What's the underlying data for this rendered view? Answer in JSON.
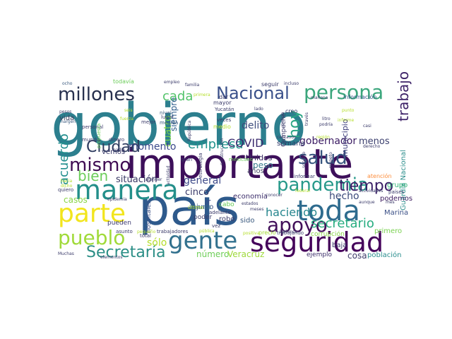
{
  "words": [
    {
      "text": "gobierno",
      "color": "#2c7f8e"
    },
    {
      "text": "importante",
      "color": "#3d0f5a"
    },
    {
      "text": "país",
      "color": "#2e5a8c"
    },
    {
      "text": "gente",
      "color": "#32718e"
    },
    {
      "text": "seguridad",
      "color": "#44015a"
    },
    {
      "text": "manera",
      "color": "#248f8a"
    },
    {
      "text": "toda",
      "color": "#2e6b8e"
    },
    {
      "text": "pandemia",
      "color": "#27998a"
    },
    {
      "text": "tiempo",
      "color": "#3a1f66"
    },
    {
      "text": "persona",
      "color": "#3ba67c"
    },
    {
      "text": "millones",
      "color": "#27304e"
    },
    {
      "text": "parte",
      "color": "#f2e51d"
    },
    {
      "text": "pueblo",
      "color": "#a0da39"
    },
    {
      "text": "mismo",
      "color": "#3e0b52"
    },
    {
      "text": "apoyo",
      "color": "#42105a"
    },
    {
      "text": "salud",
      "color": "#37557e"
    },
    {
      "text": "Nacional",
      "color": "#3a508a"
    },
    {
      "text": "Ciudad",
      "color": "#2c3a5e"
    },
    {
      "text": "Secretaría",
      "color": "#2b8e86"
    },
    {
      "text": "hoy",
      "color": "#29a584"
    },
    {
      "text": "cada",
      "color": "#52c36a"
    },
    {
      "text": "trabajo",
      "color": "#3d2268"
    },
    {
      "text": "bien",
      "color": "#6ccd5a"
    },
    {
      "text": "acuerdo",
      "color": "#218e8d"
    },
    {
      "text": "empresa",
      "color": "#20928c"
    },
    {
      "text": "secretario",
      "color": "#27ad80"
    },
    {
      "text": "haciendo",
      "color": "#26868e"
    },
    {
      "text": "COVID",
      "color": "#3b2b6e"
    },
    {
      "text": "cuatro",
      "color": "#7cd250"
    },
    {
      "text": "momento",
      "color": "#3a4a8a"
    },
    {
      "text": "situación",
      "color": "#3a3a66"
    },
    {
      "text": "sólo",
      "color": "#b5de2b"
    },
    {
      "text": "general",
      "color": "#3e4a89"
    },
    {
      "text": "cinco",
      "color": "#3a3a6a"
    },
    {
      "text": "hecho",
      "color": "#3b4a7a"
    },
    {
      "text": "gobernador",
      "color": "#3a1a62"
    },
    {
      "text": "delito",
      "color": "#3b4b7c"
    },
    {
      "text": "menos",
      "color": "#3b3f6e"
    },
    {
      "text": "siempre",
      "color": "#2a5a8a"
    },
    {
      "text": "peso",
      "color": "#3b7e8e"
    },
    {
      "text": "Veracruz",
      "color": "#9ed93a"
    },
    {
      "text": "número",
      "color": "#6ece58"
    },
    {
      "text": "cosa",
      "color": "#3e3b6a"
    },
    {
      "text": "Guardia Nacional",
      "color": "#2c8e8c"
    },
    {
      "text": "municipio",
      "color": "#3b3c7a"
    },
    {
      "text": "casos",
      "color": "#8ad547"
    },
    {
      "text": "junio",
      "color": "#3b4f7f"
    },
    {
      "text": "economía",
      "color": "#3b2d6a"
    },
    {
      "text": "Marina",
      "color": "#3a4f86"
    },
    {
      "text": "podemos",
      "color": "#3b1a5e"
    },
    {
      "text": "grupo",
      "color": "#35b779"
    },
    {
      "text": "pueden",
      "color": "#3d3a72"
    },
    {
      "text": "vemos",
      "color": "#3a3a6a"
    },
    {
      "text": "semana",
      "color": "#2f3a6a"
    },
    {
      "text": "Unidos",
      "color": "#3a2a62"
    },
    {
      "text": "años",
      "color": "#4a4a6a"
    },
    {
      "text": "vida",
      "color": "#3e3e5e"
    },
    {
      "text": "cabo",
      "color": "#6ccd5a"
    },
    {
      "text": "robo",
      "color": "#3a3a6a"
    },
    {
      "text": "sido",
      "color": "#3b5a7f"
    },
    {
      "text": "baja",
      "color": "#3b3b6a"
    },
    {
      "text": "ejemplo",
      "color": "#3b2d6a"
    },
    {
      "text": "población",
      "color": "#2a8e8e"
    },
    {
      "text": "primero",
      "color": "#7ad151"
    },
    {
      "text": "corrupción",
      "color": "#8ad547"
    },
    {
      "text": "trabajando",
      "color": "#3b3b6a"
    },
    {
      "text": "precio",
      "color": "#a5db36"
    },
    {
      "text": "hospitales",
      "color": "#3b4f86"
    },
    {
      "text": "poder",
      "color": "#3b3b6a"
    },
    {
      "text": "cuenta",
      "color": "#2f6b8e"
    },
    {
      "text": "ir",
      "color": "#3b4b8a"
    },
    {
      "text": "mayor",
      "color": "#3b3b6a"
    },
    {
      "text": "dar",
      "color": "#3b3b6a"
    },
    {
      "text": "seguir",
      "color": "#3b3b6a"
    },
    {
      "text": "información",
      "color": "#3a5a8a"
    },
    {
      "text": "creo",
      "color": "#3b3b6a"
    },
    {
      "text": "medio",
      "color": "#b5de2b"
    },
    {
      "text": "Campeche",
      "color": "#3b3b6a"
    },
    {
      "text": "Yucatán",
      "color": "#3b3b6a"
    },
    {
      "text": "mexicano",
      "color": "#6ccd5a"
    },
    {
      "text": "informar",
      "color": "#3b3b6a"
    },
    {
      "text": "atención",
      "color": "#fd8d3c"
    },
    {
      "text": "todavía",
      "color": "#6ccd5a"
    },
    {
      "text": "personal",
      "color": "#3b3b6a"
    },
    {
      "text": "mejor",
      "color": "#3b3b6a"
    },
    {
      "text": "lugar",
      "color": "#3b3b6a"
    },
    {
      "text": "mundo",
      "color": "#3b3b6a"
    },
    {
      "text": "dinero",
      "color": "#3b3b6a"
    },
    {
      "text": "propuesta",
      "color": "#6ccd5a"
    },
    {
      "text": "nivel",
      "color": "#3b5a7f"
    },
    {
      "text": "medida",
      "color": "#3b5a7f"
    },
    {
      "text": "estrategia",
      "color": "#3b3b6a"
    },
    {
      "text": "gran",
      "color": "#3b3b6a"
    },
    {
      "text": "vez",
      "color": "#3b3b6a"
    },
    {
      "text": "veces",
      "color": "#3b3b6a"
    },
    {
      "text": "República",
      "color": "#3b3b6a"
    },
    {
      "text": "actividad",
      "color": "#3b3b6a"
    },
    {
      "text": "último",
      "color": "#b5de2b"
    },
    {
      "text": "estados",
      "color": "#3b3b6a"
    },
    {
      "text": "adelante",
      "color": "#3b3b6a"
    },
    {
      "text": "construcción",
      "color": "#3b3b6a"
    },
    {
      "text": "positiva",
      "color": "#b5de2b"
    },
    {
      "text": "total",
      "color": "#3b3b6a"
    },
    {
      "text": "asunto",
      "color": "#3b3b6a"
    },
    {
      "text": "pequeño",
      "color": "#b5de2b"
    },
    {
      "text": "trabajadores",
      "color": "#3b3b6a"
    },
    {
      "text": "pública",
      "color": "#b5de2b"
    },
    {
      "text": "Muchas",
      "color": "#3b3b6a"
    },
    {
      "text": "elementos",
      "color": "#3b3b6a"
    },
    {
      "text": "quiero",
      "color": "#3b3b6a"
    },
    {
      "text": "hacia",
      "color": "#b5de2b"
    },
    {
      "text": "dicho",
      "color": "#b5de2b"
    },
    {
      "text": "epidemia",
      "color": "#3b3b6a"
    },
    {
      "text": "conocer",
      "color": "#3b3b6a"
    },
    {
      "text": "federal",
      "color": "#b5de2b"
    },
    {
      "text": "actividades",
      "color": "#3b3b6a"
    },
    {
      "text": "países",
      "color": "#3b3b6a"
    },
    {
      "text": "aunque",
      "color": "#3b3b6a"
    },
    {
      "text": "mes",
      "color": "#3b3b6a"
    },
    {
      "text": "meses",
      "color": "#3b3b6a"
    },
    {
      "text": "Defensa",
      "color": "#3b3b6a"
    },
    {
      "text": "mañana",
      "color": "#3b3b6a"
    },
    {
      "text": "incluso",
      "color": "#3b3b6a"
    },
    {
      "text": "empleo",
      "color": "#3b3b6a"
    },
    {
      "text": "familia",
      "color": "#3b3b6a"
    },
    {
      "text": "primera",
      "color": "#b5de2b"
    },
    {
      "text": "ocho",
      "color": "#3b5a7f"
    },
    {
      "text": "pesos",
      "color": "#3b3b6a"
    },
    {
      "text": "margen",
      "color": "#3b5a7f"
    },
    {
      "text": "casi",
      "color": "#3b3b6a"
    },
    {
      "text": "región",
      "color": "#b5de2b"
    },
    {
      "text": "servicio",
      "color": "#3b3b6a"
    },
    {
      "text": "centavos",
      "color": "#3b3b6a"
    },
    {
      "text": "través",
      "color": "#3b3b6a"
    },
    {
      "text": "litro",
      "color": "#3b3b6a"
    },
    {
      "text": "podría",
      "color": "#3b3b6a"
    },
    {
      "text": "informe",
      "color": "#b5de2b"
    },
    {
      "text": "policía",
      "color": "#3b3b6a"
    },
    {
      "text": "fuerza",
      "color": "#b5de2b"
    },
    {
      "text": "nadie",
      "color": "#3b3b6a"
    },
    {
      "text": "derecho",
      "color": "#3b3b6a"
    },
    {
      "text": "respeto",
      "color": "#3b3b6a"
    },
    {
      "text": "atender",
      "color": "#3b3b6a"
    },
    {
      "text": "punto",
      "color": "#b5de2b"
    },
    {
      "text": "lado",
      "color": "#3b3b6a"
    },
    {
      "text": "seis",
      "color": "#b5de2b"
    }
  ]
}
